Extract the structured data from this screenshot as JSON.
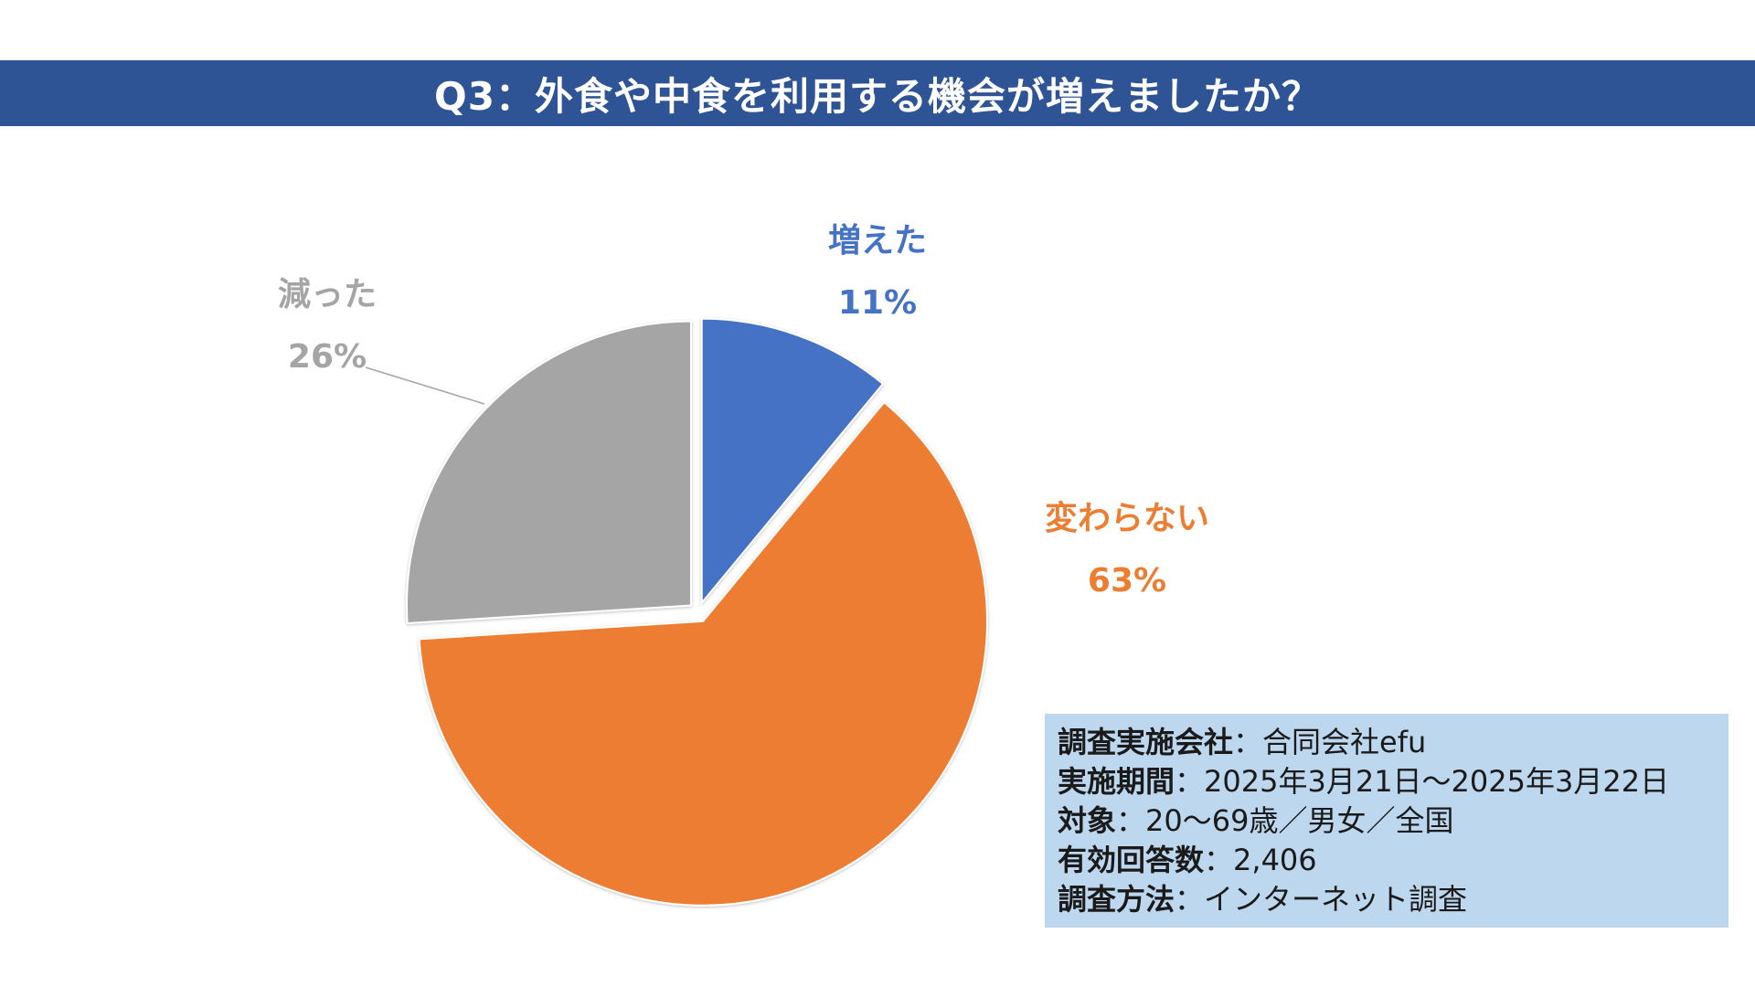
{
  "title": "Q3：外食や中食を利用する機会が増えましたか？",
  "chart_data": {
    "type": "pie",
    "title": "Q3：外食や中食を利用する機会が増えましたか？",
    "slices": [
      {
        "label": "増えた",
        "value": 11,
        "value_label": "11%",
        "color": "#4472c4"
      },
      {
        "label": "変わらない",
        "value": 63,
        "value_label": "63%",
        "color": "#ed7d31"
      },
      {
        "label": "減った",
        "value": 26,
        "value_label": "26%",
        "color": "#a5a5a5"
      }
    ],
    "exploded": true,
    "start_angle": "12 o'clock",
    "direction": "clockwise"
  },
  "survey_info": [
    {
      "key": "調査実施会社",
      "sep": "：",
      "value": "合同会社efu"
    },
    {
      "key": "実施期間",
      "sep": "：",
      "value": "2025年3月21日～2025年3月22日"
    },
    {
      "key": "対象",
      "sep": "：",
      "value": "20～69歳／男女／全国"
    },
    {
      "key": "有効回答数",
      "sep": "：",
      "value": "2,406"
    },
    {
      "key": "調査方法",
      "sep": "：",
      "value": "インターネット調査"
    }
  ]
}
